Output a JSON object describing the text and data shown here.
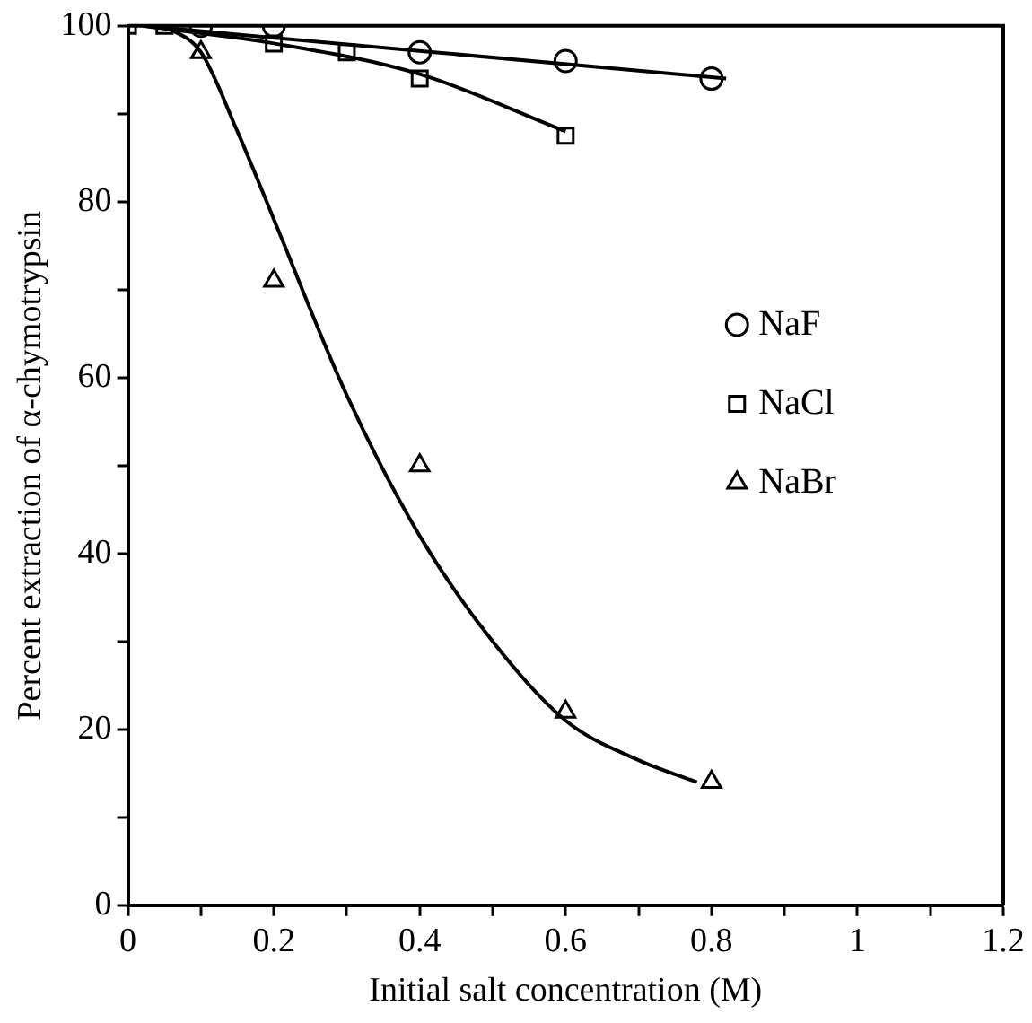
{
  "chart_data": {
    "type": "scatter",
    "xlabel": "Initial salt concentration (M)",
    "ylabel": "Percent extraction of α-chymotrypsin",
    "xlim": [
      0,
      1.2
    ],
    "xticks": [
      0,
      {
        "value": 0.1,
        "label": null
      },
      0.2,
      {
        "value": 0.3,
        "label": null
      },
      0.4,
      {
        "value": 0.5,
        "label": null
      },
      0.6,
      {
        "value": 0.7,
        "label": null
      },
      0.8,
      {
        "value": 0.9,
        "label": null
      },
      1,
      {
        "value": 1.1,
        "label": null
      },
      1.2
    ],
    "ylim": [
      0,
      100
    ],
    "yticks": [
      0,
      {
        "value": 10,
        "label": null
      },
      20,
      {
        "value": 30,
        "label": null
      },
      40,
      {
        "value": 50,
        "label": null
      },
      60,
      {
        "value": 70,
        "label": null
      },
      80,
      {
        "value": 90,
        "label": null
      },
      100
    ],
    "grid": false,
    "legend": "right",
    "series": [
      {
        "name": "NaF",
        "marker": "circle",
        "color": "#000000",
        "x": [
          0.1,
          0.2,
          0.4,
          0.6,
          0.8
        ],
        "values": [
          100,
          100,
          97,
          96,
          94
        ]
      },
      {
        "name": "NaCl",
        "marker": "square",
        "color": "#000000",
        "x": [
          0,
          0.05,
          0.2,
          0.3,
          0.4,
          0.6
        ],
        "values": [
          100,
          100,
          98,
          97,
          94,
          87.5
        ]
      },
      {
        "name": "NaBr",
        "marker": "triangle",
        "color": "#000000",
        "x": [
          0.1,
          0.2,
          0.4,
          0.6,
          0.8
        ],
        "values": [
          97,
          71,
          50,
          22,
          14
        ]
      },
      {
        "type": "line",
        "marker": "none",
        "color": "#000000",
        "x": [
          0.02,
          0.82
        ],
        "values": [
          100,
          94
        ]
      },
      {
        "type": "line",
        "marker": "none",
        "color": "#000000",
        "x": [
          0.02,
          0.2,
          0.4,
          0.6
        ],
        "values": [
          100,
          98,
          94.5,
          88
        ]
      },
      {
        "type": "line",
        "marker": "none",
        "color": "#000000",
        "x": [
          0.05,
          0.1,
          0.15,
          0.2,
          0.3,
          0.4,
          0.5,
          0.6,
          0.7,
          0.78
        ],
        "values": [
          100,
          97,
          88,
          78,
          58,
          42,
          30,
          21,
          16.5,
          14
        ]
      }
    ]
  }
}
